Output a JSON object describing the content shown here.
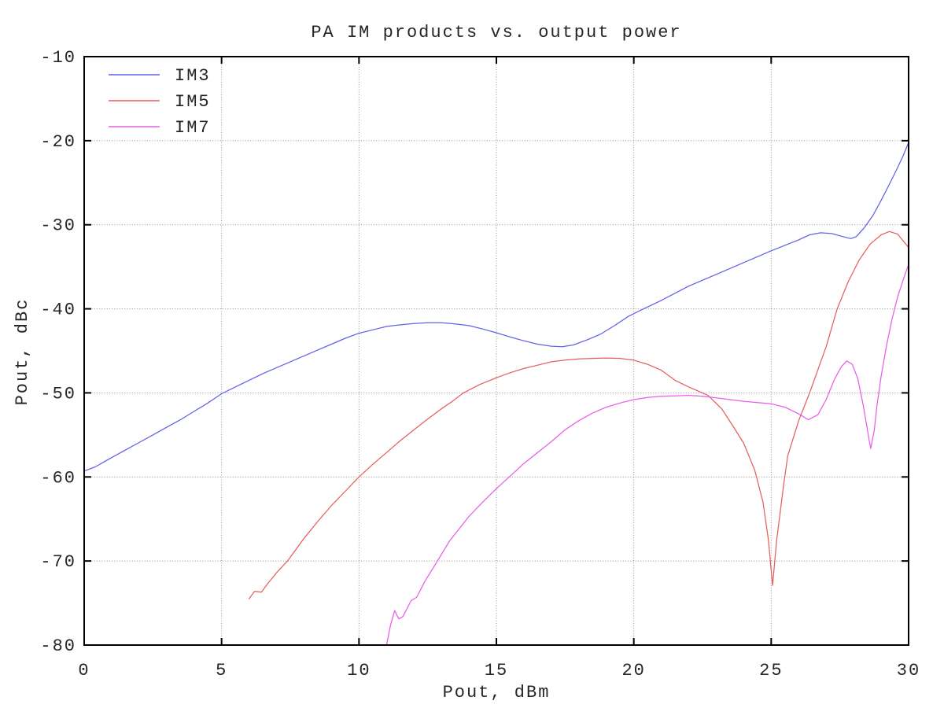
{
  "chart_data": {
    "type": "line",
    "title": "PA IM products vs. output power",
    "xlabel": "Pout, dBm",
    "ylabel": "Pout, dBc",
    "xlim": [
      0,
      30
    ],
    "ylim": [
      -80,
      -10
    ],
    "xticks": [
      0,
      5,
      10,
      15,
      20,
      25,
      30
    ],
    "yticks": [
      -80,
      -70,
      -60,
      -50,
      -40,
      -30,
      -20,
      -10
    ],
    "grid": true,
    "legend_position": "top-left-inside",
    "colors": {
      "background": "#ffffff",
      "axis": "#000000",
      "grid": "#8f8f8f",
      "text": "#262626"
    },
    "series": [
      {
        "name": "IM3",
        "color": "#6161e8",
        "points": [
          [
            0,
            -59.3
          ],
          [
            0.4,
            -58.8
          ],
          [
            1,
            -57.7
          ],
          [
            1.5,
            -56.8
          ],
          [
            2,
            -55.9
          ],
          [
            2.5,
            -55.0
          ],
          [
            3,
            -54.1
          ],
          [
            3.5,
            -53.2
          ],
          [
            4,
            -52.2
          ],
          [
            4.5,
            -51.2
          ],
          [
            5,
            -50.1
          ],
          [
            5.5,
            -49.3
          ],
          [
            6,
            -48.5
          ],
          [
            6.5,
            -47.7
          ],
          [
            7,
            -47.0
          ],
          [
            7.5,
            -46.3
          ],
          [
            8,
            -45.6
          ],
          [
            8.5,
            -44.9
          ],
          [
            9,
            -44.2
          ],
          [
            9.5,
            -43.5
          ],
          [
            10,
            -42.9
          ],
          [
            10.5,
            -42.5
          ],
          [
            11,
            -42.1
          ],
          [
            11.5,
            -41.9
          ],
          [
            12,
            -41.75
          ],
          [
            12.5,
            -41.65
          ],
          [
            13,
            -41.65
          ],
          [
            13.5,
            -41.8
          ],
          [
            14,
            -42.0
          ],
          [
            14.5,
            -42.4
          ],
          [
            15,
            -42.85
          ],
          [
            15.5,
            -43.35
          ],
          [
            16,
            -43.8
          ],
          [
            16.5,
            -44.2
          ],
          [
            17,
            -44.45
          ],
          [
            17.4,
            -44.5
          ],
          [
            17.8,
            -44.3
          ],
          [
            18.3,
            -43.7
          ],
          [
            18.8,
            -43.0
          ],
          [
            19.3,
            -42.0
          ],
          [
            19.8,
            -40.9
          ],
          [
            20.3,
            -40.1
          ],
          [
            21,
            -39.0
          ],
          [
            22,
            -37.3
          ],
          [
            23,
            -35.9
          ],
          [
            24,
            -34.5
          ],
          [
            25,
            -33.1
          ],
          [
            26,
            -31.8
          ],
          [
            26.4,
            -31.2
          ],
          [
            26.8,
            -30.95
          ],
          [
            27.2,
            -31.05
          ],
          [
            27.6,
            -31.4
          ],
          [
            27.9,
            -31.65
          ],
          [
            28.1,
            -31.4
          ],
          [
            28.4,
            -30.3
          ],
          [
            28.7,
            -28.9
          ],
          [
            29,
            -27.1
          ],
          [
            29.3,
            -25.2
          ],
          [
            29.6,
            -23.2
          ],
          [
            29.8,
            -21.8
          ],
          [
            30,
            -20.2
          ]
        ]
      },
      {
        "name": "IM5",
        "color": "#e55f5f",
        "points": [
          [
            6,
            -74.5
          ],
          [
            6.2,
            -73.6
          ],
          [
            6.45,
            -73.7
          ],
          [
            6.7,
            -72.6
          ],
          [
            7,
            -71.4
          ],
          [
            7.4,
            -70.0
          ],
          [
            8,
            -67.3
          ],
          [
            8.5,
            -65.3
          ],
          [
            9,
            -63.4
          ],
          [
            9.5,
            -61.7
          ],
          [
            10,
            -60.0
          ],
          [
            10.5,
            -58.5
          ],
          [
            11,
            -57.1
          ],
          [
            11.5,
            -55.7
          ],
          [
            12,
            -54.4
          ],
          [
            12.5,
            -53.1
          ],
          [
            13,
            -51.9
          ],
          [
            13.4,
            -51.0
          ],
          [
            13.8,
            -50.0
          ],
          [
            14.4,
            -49.0
          ],
          [
            15,
            -48.2
          ],
          [
            15.5,
            -47.6
          ],
          [
            16,
            -47.1
          ],
          [
            16.5,
            -46.7
          ],
          [
            17,
            -46.3
          ],
          [
            17.5,
            -46.1
          ],
          [
            18,
            -45.95
          ],
          [
            18.5,
            -45.9
          ],
          [
            19,
            -45.85
          ],
          [
            19.5,
            -45.9
          ],
          [
            20,
            -46.1
          ],
          [
            20.5,
            -46.6
          ],
          [
            21,
            -47.3
          ],
          [
            21.5,
            -48.5
          ],
          [
            22,
            -49.3
          ],
          [
            22.7,
            -50.3
          ],
          [
            23.2,
            -51.9
          ],
          [
            23.6,
            -53.9
          ],
          [
            24,
            -56.0
          ],
          [
            24.4,
            -59.2
          ],
          [
            24.7,
            -63.0
          ],
          [
            24.9,
            -67.5
          ],
          [
            25.05,
            -72.9
          ],
          [
            25.2,
            -67.5
          ],
          [
            25.45,
            -61.0
          ],
          [
            25.6,
            -57.5
          ],
          [
            26,
            -53.3
          ],
          [
            26.4,
            -50.0
          ],
          [
            27,
            -44.5
          ],
          [
            27.4,
            -40.0
          ],
          [
            27.8,
            -36.8
          ],
          [
            28.2,
            -34.2
          ],
          [
            28.6,
            -32.3
          ],
          [
            29,
            -31.2
          ],
          [
            29.3,
            -30.8
          ],
          [
            29.6,
            -31.1
          ],
          [
            30,
            -32.7
          ]
        ]
      },
      {
        "name": "IM7",
        "color": "#ea5cea",
        "points": [
          [
            11,
            -80
          ],
          [
            11.15,
            -77.6
          ],
          [
            11.3,
            -75.9
          ],
          [
            11.45,
            -76.9
          ],
          [
            11.6,
            -76.6
          ],
          [
            11.9,
            -74.7
          ],
          [
            12.1,
            -74.3
          ],
          [
            12.4,
            -72.4
          ],
          [
            12.8,
            -70.3
          ],
          [
            13.3,
            -67.6
          ],
          [
            14,
            -64.7
          ],
          [
            14.5,
            -63.0
          ],
          [
            15,
            -61.4
          ],
          [
            15.5,
            -59.9
          ],
          [
            16,
            -58.4
          ],
          [
            16.5,
            -57.1
          ],
          [
            17,
            -55.8
          ],
          [
            17.5,
            -54.4
          ],
          [
            18,
            -53.3
          ],
          [
            18.5,
            -52.4
          ],
          [
            19,
            -51.7
          ],
          [
            19.5,
            -51.2
          ],
          [
            20,
            -50.8
          ],
          [
            20.5,
            -50.55
          ],
          [
            21,
            -50.4
          ],
          [
            21.5,
            -50.35
          ],
          [
            22,
            -50.3
          ],
          [
            22.5,
            -50.4
          ],
          [
            23,
            -50.6
          ],
          [
            23.5,
            -50.8
          ],
          [
            24,
            -51.0
          ],
          [
            24.5,
            -51.15
          ],
          [
            25,
            -51.3
          ],
          [
            25.5,
            -51.7
          ],
          [
            26,
            -52.5
          ],
          [
            26.35,
            -53.2
          ],
          [
            26.7,
            -52.6
          ],
          [
            27,
            -50.8
          ],
          [
            27.3,
            -48.4
          ],
          [
            27.55,
            -46.9
          ],
          [
            27.75,
            -46.2
          ],
          [
            27.95,
            -46.6
          ],
          [
            28.15,
            -48.3
          ],
          [
            28.35,
            -51.5
          ],
          [
            28.55,
            -55.3
          ],
          [
            28.62,
            -56.6
          ],
          [
            28.75,
            -54.5
          ],
          [
            28.85,
            -51.5
          ],
          [
            29,
            -48.0
          ],
          [
            29.2,
            -44.3
          ],
          [
            29.4,
            -41.2
          ],
          [
            29.6,
            -38.6
          ],
          [
            29.8,
            -36.6
          ],
          [
            30,
            -34.7
          ]
        ]
      }
    ]
  }
}
